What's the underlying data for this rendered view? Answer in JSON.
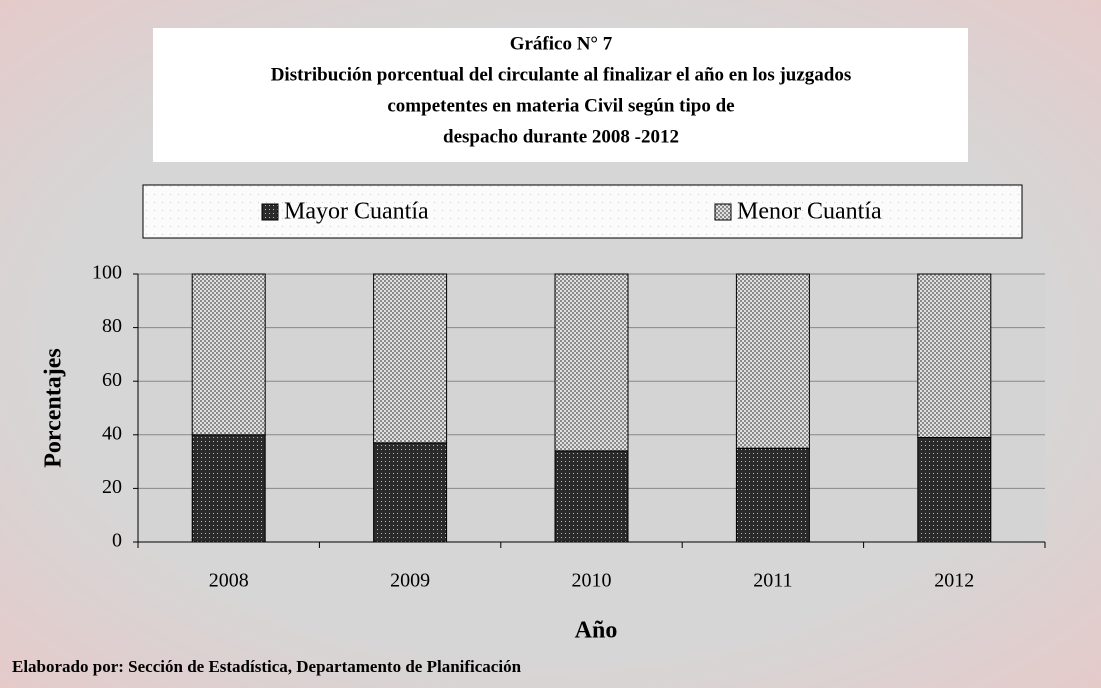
{
  "chart_data": {
    "type": "stacked_bar",
    "title": [
      "Gráfico N° 7",
      "Distribución porcentual del circulante al finalizar el año en los juzgados",
      "competentes en materia Civil según tipo de",
      "despacho durante 2008 -2012"
    ],
    "categories": [
      "2008",
      "2009",
      "2010",
      "2011",
      "2012"
    ],
    "series": [
      {
        "name": "Mayor Cuantía",
        "color": "#2a2a2a",
        "values": [
          40,
          37,
          34,
          35,
          39
        ]
      },
      {
        "name": "Menor Cuantía",
        "color": "#8a8a8a",
        "values": [
          60,
          63,
          66,
          65,
          61
        ]
      }
    ],
    "ylim": [
      0,
      100
    ],
    "yticks": [
      0,
      20,
      40,
      60,
      80,
      100
    ],
    "grid": true,
    "y_label": "Porcentajes",
    "x_label": "Año",
    "source": "Elaborado por: Sección de Estadística, Departamento de Planificación"
  }
}
